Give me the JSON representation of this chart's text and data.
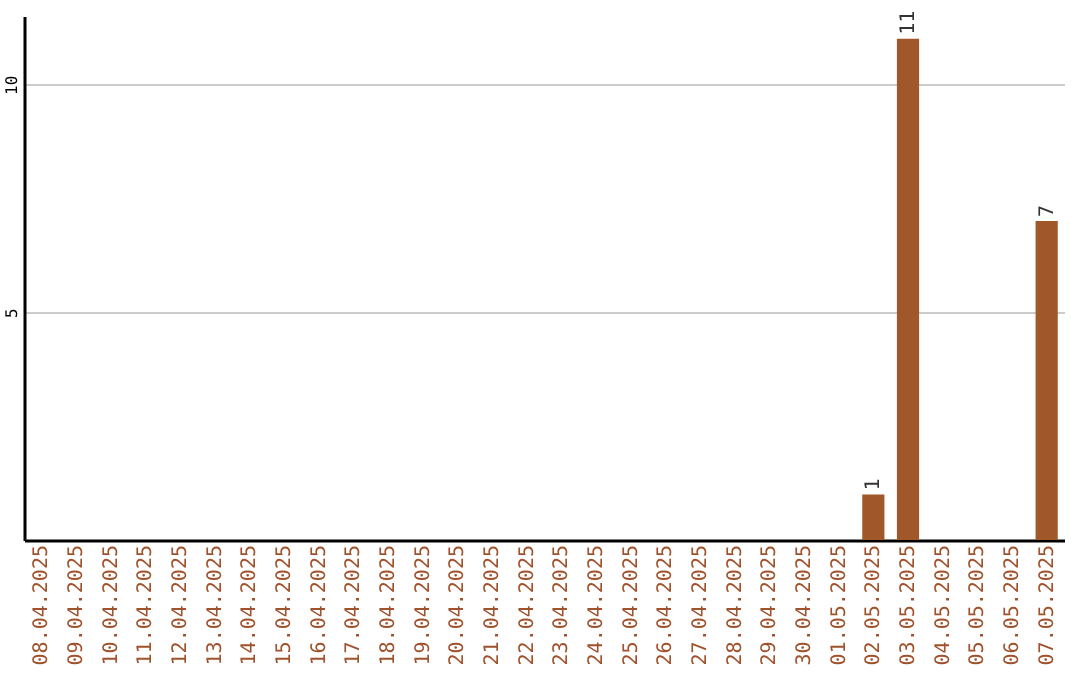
{
  "chart_data": {
    "type": "bar",
    "categories": [
      "08.04.2025",
      "09.04.2025",
      "10.04.2025",
      "11.04.2025",
      "12.04.2025",
      "13.04.2025",
      "14.04.2025",
      "15.04.2025",
      "16.04.2025",
      "17.04.2025",
      "18.04.2025",
      "19.04.2025",
      "20.04.2025",
      "21.04.2025",
      "22.04.2025",
      "23.04.2025",
      "24.04.2025",
      "25.04.2025",
      "26.04.2025",
      "27.04.2025",
      "28.04.2025",
      "29.04.2025",
      "30.04.2025",
      "01.05.2025",
      "02.05.2025",
      "03.05.2025",
      "04.05.2025",
      "05.05.2025",
      "06.05.2025",
      "07.05.2025"
    ],
    "values": [
      0,
      0,
      0,
      0,
      0,
      0,
      0,
      0,
      0,
      0,
      0,
      0,
      0,
      0,
      0,
      0,
      0,
      0,
      0,
      0,
      0,
      0,
      0,
      0,
      1,
      11,
      0,
      0,
      0,
      7
    ],
    "value_labels": [
      null,
      null,
      null,
      null,
      null,
      null,
      null,
      null,
      null,
      null,
      null,
      null,
      null,
      null,
      null,
      null,
      null,
      null,
      null,
      null,
      null,
      null,
      null,
      null,
      "1",
      "11",
      null,
      null,
      null,
      "7"
    ],
    "color": "#a0582a",
    "ylim": [
      0,
      11.5
    ],
    "yticks": [
      5,
      10
    ],
    "grid": "y"
  }
}
